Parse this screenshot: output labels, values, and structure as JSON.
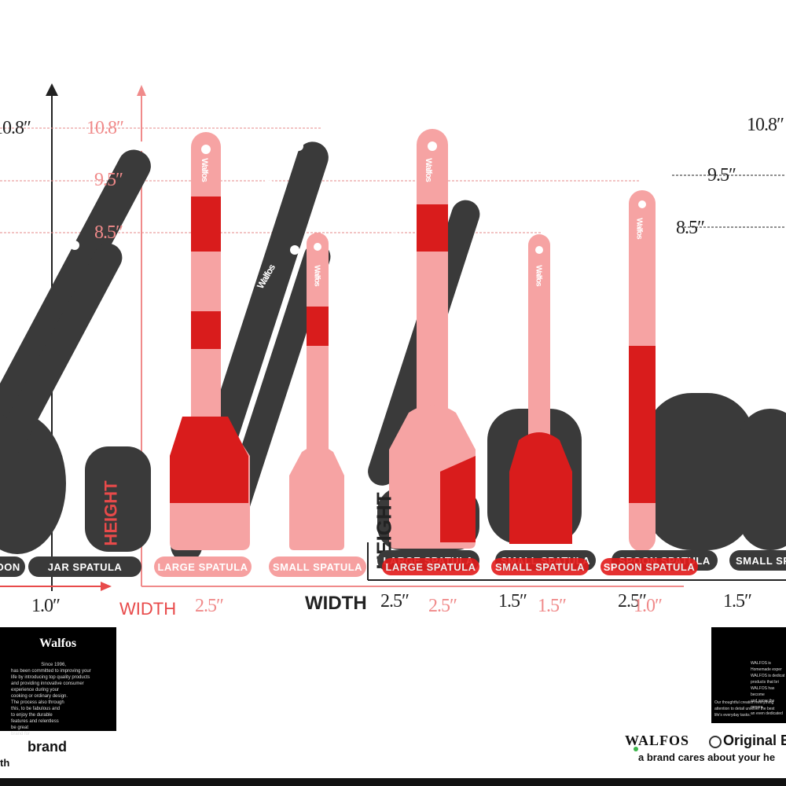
{
  "heights": {
    "left": [
      "10.8″",
      "9.5″",
      "8.5″"
    ],
    "right": [
      "10.8″",
      "9.5″",
      "8.5″"
    ]
  },
  "widths": {
    "black_set_left": "1.0″",
    "pink_set": [
      "2.5″",
      "1.5″",
      "2.5″",
      "1.5″",
      "1.0″"
    ],
    "black_set_right": [
      "2.5″",
      "1.5″",
      "2.5″",
      "1.5″"
    ]
  },
  "axis": {
    "width_word": "WIDTH",
    "height_word": "HEIGHT"
  },
  "pills": {
    "black_left": [
      "SPOON",
      "JAR SPATULA"
    ],
    "pink": [
      "LARGE SPATULA",
      "SMALL SPATULA"
    ],
    "black_right": [
      "LARGE SPATULA",
      "SMALL SPATULA",
      "SPOON SPATULA",
      "SMALL SPO"
    ],
    "red": [
      "LARGE SPATULA",
      "SMALL SPATULA",
      "SPOON SPATULA"
    ]
  },
  "utensil_brand": "Walfos",
  "card_left": {
    "brand": "Walfos",
    "text": [
      "Since 1996,",
      "has been committed to improving your",
      "life by introducing top quality products",
      "and providing innovative consumer",
      "experience during your",
      "cooking or ordinary design.",
      "The process also through",
      "this, to be fabulous and",
      "to enjoy the durable",
      "features and relentless",
      "be great",
      "brand for"
    ]
  },
  "card_right": {
    "text": [
      "WALFOS is",
      "Homemade exper",
      "WALFOS is dedicat",
      "products that bri",
      "WALFOS has become",
      "and serve the genera",
      "an even dedicated",
      "Our thoughtful creation everything",
      "attention to detail uncover the best",
      "life's everyday tasks."
    ]
  },
  "footer": {
    "left_line1": "brand",
    "left_line2": "th",
    "right_logo": "WALFOS",
    "right_line1": "Original B",
    "right_line2": "a brand cares about your he"
  },
  "colors": {
    "pink": "#f6a0a0",
    "red": "#e31b1b",
    "dark": "#3a3a3a"
  }
}
